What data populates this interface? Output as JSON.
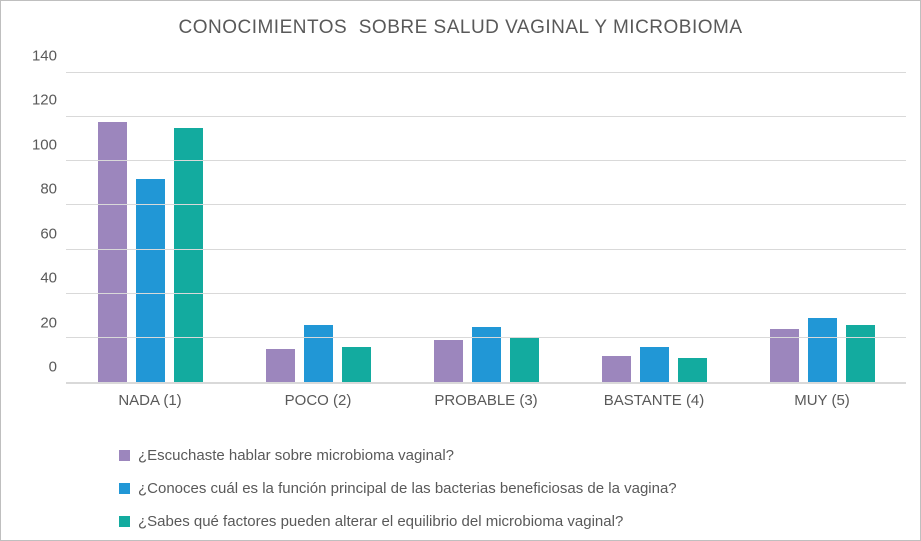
{
  "chart_data": {
    "type": "bar",
    "title": "CONOCIMIENTOS  SOBRE SALUD VAGINAL Y MICROBIOMA",
    "categories": [
      "NADA (1)",
      "POCO (2)",
      "PROBABLE (3)",
      "BASTANTE (4)",
      "MUY (5)"
    ],
    "series": [
      {
        "name": "¿Escuchaste hablar sobre microbioma vaginal?",
        "color": "#9c86bd",
        "values": [
          118,
          15,
          19,
          12,
          24
        ]
      },
      {
        "name": "¿Conoces cuál es la función principal de las bacterias beneficiosas de la vagina?",
        "color": "#2197d6",
        "values": [
          92,
          26,
          25,
          16,
          29
        ]
      },
      {
        "name": "¿Sabes qué factores pueden alterar el equilibrio del microbioma vaginal?",
        "color": "#13ab9f",
        "values": [
          115,
          16,
          20,
          11,
          26
        ]
      }
    ],
    "xlabel": "",
    "ylabel": "",
    "ylim": [
      0,
      140
    ],
    "yticks": [
      0,
      20,
      40,
      60,
      80,
      100,
      120,
      140
    ],
    "grid": true,
    "legend_position": "bottom-left",
    "colors": {
      "text": "#595959",
      "gridline": "#d9d9d9",
      "frame_border": "#bfbfbf",
      "background": "#ffffff"
    }
  }
}
